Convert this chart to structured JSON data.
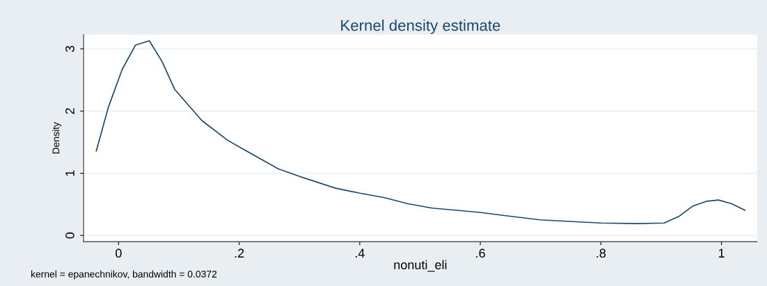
{
  "chart_data": {
    "type": "line",
    "title": "Kernel density estimate",
    "xlabel": "nonuti_eli",
    "ylabel": "Density",
    "annotations": [
      "kernel = epanechnikov, bandwidth = 0.0372"
    ],
    "series": [
      {
        "color": "#1a476f",
        "x": [
          -0.037,
          -0.017,
          0.006,
          0.028,
          0.051,
          0.072,
          0.093,
          0.138,
          0.181,
          0.208,
          0.265,
          0.3,
          0.36,
          0.4,
          0.44,
          0.48,
          0.52,
          0.6,
          0.64,
          0.7,
          0.76,
          0.8,
          0.86,
          0.905,
          0.93,
          0.952,
          0.975,
          0.995,
          1.017,
          1.039
        ],
        "values": [
          1.36,
          2.06,
          2.67,
          3.06,
          3.13,
          2.8,
          2.35,
          1.85,
          1.53,
          1.38,
          1.07,
          0.95,
          0.76,
          0.68,
          0.61,
          0.51,
          0.44,
          0.37,
          0.32,
          0.25,
          0.22,
          0.2,
          0.19,
          0.2,
          0.31,
          0.47,
          0.55,
          0.57,
          0.51,
          0.405
        ]
      }
    ],
    "xlim": [
      -0.058,
      1.059
    ],
    "ylim": [
      -0.1,
      3.23
    ],
    "xticks": [
      0,
      {
        "value": 0.2,
        "label": ".2"
      },
      {
        "value": 0.4,
        "label": ".4"
      },
      {
        "value": 0.6,
        "label": ".6"
      },
      {
        "value": 0.8,
        "label": ".8"
      },
      1
    ],
    "yticks": [
      0,
      1,
      2,
      3
    ],
    "grid": "y",
    "marker": "none",
    "line_style": "solid"
  }
}
